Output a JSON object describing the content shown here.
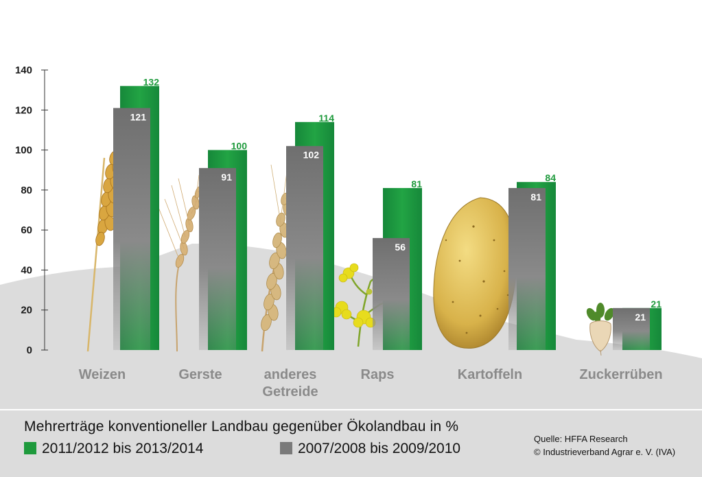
{
  "chart_data": {
    "type": "bar",
    "title": "Mehrerträge konventioneller Landbau gegenüber Ökolandbau in %",
    "categories": [
      "Weizen",
      "Gerste",
      "anderes Getreide",
      "Raps",
      "Kartoffeln",
      "Zuckerrüben"
    ],
    "category_lines": [
      [
        "Weizen"
      ],
      [
        "Gerste"
      ],
      [
        "anderes",
        "Getreide"
      ],
      [
        "Raps"
      ],
      [
        "Kartoffeln"
      ],
      [
        "Zuckerrüben"
      ]
    ],
    "series": [
      {
        "name": "2011/2012 bis 2013/2014",
        "color": "#1e9a3c",
        "values": [
          132,
          100,
          114,
          81,
          84,
          21
        ]
      },
      {
        "name": "2007/2008 bis 2009/2010",
        "color": "#808080",
        "values": [
          121,
          91,
          102,
          56,
          81,
          21
        ]
      }
    ],
    "yticks": [
      0,
      20,
      40,
      60,
      80,
      100,
      120,
      140
    ],
    "ylim": [
      0,
      140
    ],
    "grid": false,
    "legend_position": "bottom"
  },
  "legend": {
    "title": "Mehrerträge konventioneller Landbau gegenüber Ökolandbau in %",
    "green_label": "2011/2012 bis 2013/2014",
    "grey_label": "2007/2008 bis 2009/2010"
  },
  "source": {
    "line1": "Quelle: HFFA Research",
    "line2": "© Industrieverband Agrar e. V. (IVA)"
  },
  "colors": {
    "green": "#1e9a3c",
    "grey": "#808080",
    "background_hill": "#dcdcdc"
  },
  "illustrations": [
    "wheat-ear",
    "barley-ear",
    "grain-ear",
    "rapeseed-flower",
    "potato",
    "sugar-beet"
  ]
}
